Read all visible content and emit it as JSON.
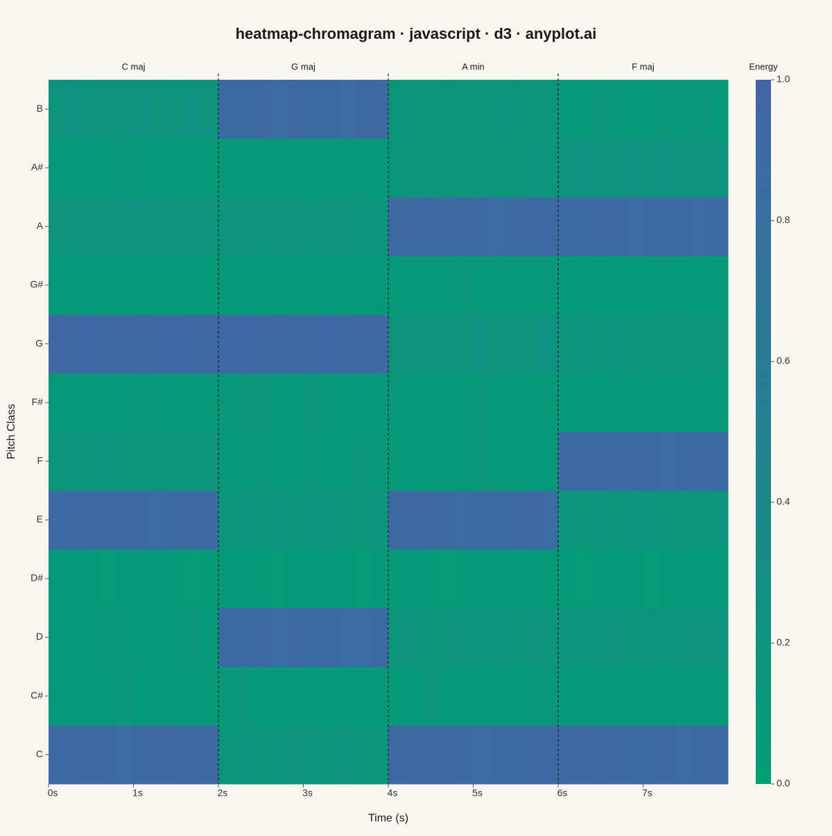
{
  "chart_data": {
    "type": "heatmap",
    "title": "heatmap-chromagram · javascript · d3 · anyplot.ai",
    "x_label": "Time (s)",
    "y_label": "Pitch Class",
    "xlim": [
      0,
      8
    ],
    "xticks": [
      {
        "value": 0,
        "label": "0s"
      },
      {
        "value": 1,
        "label": "1s"
      },
      {
        "value": 2,
        "label": "2s"
      },
      {
        "value": 3,
        "label": "3s"
      },
      {
        "value": 4,
        "label": "4s"
      },
      {
        "value": 5,
        "label": "5s"
      },
      {
        "value": 6,
        "label": "6s"
      },
      {
        "value": 7,
        "label": "7s"
      }
    ],
    "x": [
      0,
      0.2,
      0.4,
      0.6,
      0.8,
      1,
      1.2,
      1.4,
      1.6,
      1.8,
      2,
      2.2,
      2.4,
      2.6,
      2.8,
      3,
      3.2,
      3.4,
      3.6,
      3.8,
      4,
      4.2,
      4.4,
      4.6,
      4.8,
      5,
      5.2,
      5.4,
      5.6,
      5.8,
      6,
      6.2,
      6.4,
      6.6,
      6.8,
      7,
      7.2,
      7.4,
      7.6,
      7.8
    ],
    "y": [
      "C",
      "C#",
      "D",
      "D#",
      "E",
      "F",
      "F#",
      "G",
      "G#",
      "A",
      "A#",
      "B"
    ],
    "values": [
      [
        0.9,
        0.88,
        0.92,
        0.9,
        0.87,
        0.89,
        0.93,
        0.9,
        0.88,
        0.91,
        0.15,
        0.18,
        0.14,
        0.16,
        0.2,
        0.17,
        0.15,
        0.19,
        0.13,
        0.16,
        0.92,
        0.89,
        0.9,
        0.88,
        0.91,
        0.87,
        0.9,
        0.86,
        0.89,
        0.88,
        0.9,
        0.93,
        0.88,
        0.91,
        0.86,
        0.89,
        0.92,
        0.87,
        0.9,
        0.88
      ],
      [
        0.1,
        0.12,
        0.09,
        0.11,
        0.13,
        0.08,
        0.1,
        0.12,
        0.09,
        0.11,
        0.1,
        0.13,
        0.08,
        0.1,
        0.12,
        0.09,
        0.11,
        0.08,
        0.1,
        0.12,
        0.09,
        0.11,
        0.13,
        0.1,
        0.08,
        0.12,
        0.1,
        0.09,
        0.11,
        0.13,
        0.1,
        0.12,
        0.09,
        0.11,
        0.08,
        0.1,
        0.12,
        0.09,
        0.11,
        0.1
      ],
      [
        0.12,
        0.09,
        0.11,
        0.13,
        0.1,
        0.12,
        0.09,
        0.11,
        0.14,
        0.1,
        0.88,
        0.86,
        0.89,
        0.87,
        0.9,
        0.86,
        0.88,
        0.85,
        0.87,
        0.89,
        0.17,
        0.19,
        0.15,
        0.18,
        0.2,
        0.16,
        0.18,
        0.15,
        0.19,
        0.17,
        0.18,
        0.16,
        0.2,
        0.17,
        0.15,
        0.19,
        0.16,
        0.18,
        0.17,
        0.19
      ],
      [
        0.08,
        0.07,
        0.09,
        0.06,
        0.08,
        0.1,
        0.07,
        0.09,
        0.06,
        0.08,
        0.07,
        0.09,
        0.08,
        0.06,
        0.07,
        0.09,
        0.08,
        0.07,
        0.06,
        0.09,
        0.08,
        0.07,
        0.09,
        0.06,
        0.08,
        0.07,
        0.1,
        0.08,
        0.07,
        0.09,
        0.08,
        0.06,
        0.09,
        0.07,
        0.08,
        0.06,
        0.09,
        0.07,
        0.08,
        0.09
      ],
      [
        0.91,
        0.89,
        0.92,
        0.9,
        0.88,
        0.9,
        0.87,
        0.89,
        0.91,
        0.88,
        0.14,
        0.16,
        0.15,
        0.18,
        0.13,
        0.16,
        0.17,
        0.15,
        0.14,
        0.18,
        0.9,
        0.92,
        0.88,
        0.9,
        0.87,
        0.89,
        0.86,
        0.88,
        0.9,
        0.87,
        0.16,
        0.14,
        0.17,
        0.15,
        0.18,
        0.16,
        0.14,
        0.17,
        0.15,
        0.16
      ],
      [
        0.15,
        0.17,
        0.14,
        0.16,
        0.13,
        0.18,
        0.15,
        0.16,
        0.14,
        0.17,
        0.12,
        0.1,
        0.13,
        0.11,
        0.12,
        0.14,
        0.1,
        0.12,
        0.15,
        0.11,
        0.1,
        0.12,
        0.09,
        0.11,
        0.1,
        0.13,
        0.11,
        0.1,
        0.12,
        0.09,
        0.9,
        0.92,
        0.89,
        0.91,
        0.88,
        0.9,
        0.87,
        0.89,
        0.88,
        0.9
      ],
      [
        0.1,
        0.12,
        0.09,
        0.11,
        0.1,
        0.13,
        0.1,
        0.09,
        0.12,
        0.1,
        0.11,
        0.13,
        0.15,
        0.12,
        0.1,
        0.14,
        0.12,
        0.11,
        0.1,
        0.12,
        0.11,
        0.09,
        0.12,
        0.1,
        0.11,
        0.13,
        0.1,
        0.12,
        0.09,
        0.11,
        0.08,
        0.1,
        0.09,
        0.11,
        0.08,
        0.1,
        0.09,
        0.08,
        0.1,
        0.09
      ],
      [
        0.93,
        0.91,
        0.94,
        0.92,
        0.93,
        0.9,
        0.92,
        0.94,
        0.91,
        0.93,
        0.92,
        0.94,
        0.91,
        0.93,
        0.9,
        0.92,
        0.94,
        0.91,
        0.93,
        0.92,
        0.2,
        0.18,
        0.21,
        0.19,
        0.2,
        0.22,
        0.18,
        0.2,
        0.19,
        0.22,
        0.15,
        0.17,
        0.14,
        0.16,
        0.15,
        0.13,
        0.17,
        0.14,
        0.16,
        0.15
      ],
      [
        0.08,
        0.09,
        0.07,
        0.08,
        0.1,
        0.07,
        0.09,
        0.08,
        0.07,
        0.09,
        0.09,
        0.08,
        0.1,
        0.07,
        0.08,
        0.09,
        0.07,
        0.08,
        0.09,
        0.07,
        0.11,
        0.1,
        0.12,
        0.11,
        0.13,
        0.1,
        0.12,
        0.11,
        0.1,
        0.12,
        0.08,
        0.07,
        0.09,
        0.08,
        0.07,
        0.09,
        0.1,
        0.08,
        0.07,
        0.09
      ],
      [
        0.2,
        0.18,
        0.21,
        0.19,
        0.2,
        0.22,
        0.19,
        0.21,
        0.2,
        0.18,
        0.18,
        0.2,
        0.17,
        0.19,
        0.21,
        0.18,
        0.17,
        0.19,
        0.16,
        0.18,
        0.9,
        0.92,
        0.89,
        0.91,
        0.88,
        0.9,
        0.87,
        0.89,
        0.91,
        0.88,
        0.88,
        0.86,
        0.89,
        0.9,
        0.87,
        0.88,
        0.86,
        0.89,
        0.87,
        0.88
      ],
      [
        0.1,
        0.12,
        0.09,
        0.11,
        0.13,
        0.1,
        0.12,
        0.09,
        0.11,
        0.1,
        0.1,
        0.09,
        0.11,
        0.12,
        0.1,
        0.09,
        0.11,
        0.1,
        0.12,
        0.09,
        0.15,
        0.14,
        0.16,
        0.15,
        0.13,
        0.16,
        0.14,
        0.15,
        0.17,
        0.14,
        0.2,
        0.22,
        0.19,
        0.21,
        0.23,
        0.2,
        0.22,
        0.19,
        0.21,
        0.2
      ],
      [
        0.2,
        0.22,
        0.19,
        0.21,
        0.2,
        0.23,
        0.2,
        0.19,
        0.22,
        0.21,
        0.88,
        0.86,
        0.89,
        0.87,
        0.9,
        0.86,
        0.88,
        0.87,
        0.89,
        0.88,
        0.15,
        0.16,
        0.14,
        0.15,
        0.17,
        0.14,
        0.16,
        0.15,
        0.14,
        0.16,
        0.12,
        0.1,
        0.13,
        0.11,
        0.12,
        0.1,
        0.13,
        0.11,
        0.14,
        0.12
      ]
    ],
    "segments": [
      {
        "label": "C maj",
        "start": 0,
        "end": 2
      },
      {
        "label": "G maj",
        "start": 2,
        "end": 4
      },
      {
        "label": "A min",
        "start": 4,
        "end": 6
      },
      {
        "label": "F maj",
        "start": 6,
        "end": 8
      }
    ],
    "colorbar": {
      "title": "Energy",
      "lim": [
        0,
        1
      ],
      "colors": [
        "#009e73",
        "#4464a9"
      ],
      "ticks": [
        {
          "value": 0,
          "label": "0.0"
        },
        {
          "value": 0.2,
          "label": "0.2"
        },
        {
          "value": 0.4,
          "label": "0.4"
        },
        {
          "value": 0.6,
          "label": "0.6"
        },
        {
          "value": 0.8,
          "label": "0.8"
        },
        {
          "value": 1,
          "label": "1.0"
        }
      ]
    }
  }
}
